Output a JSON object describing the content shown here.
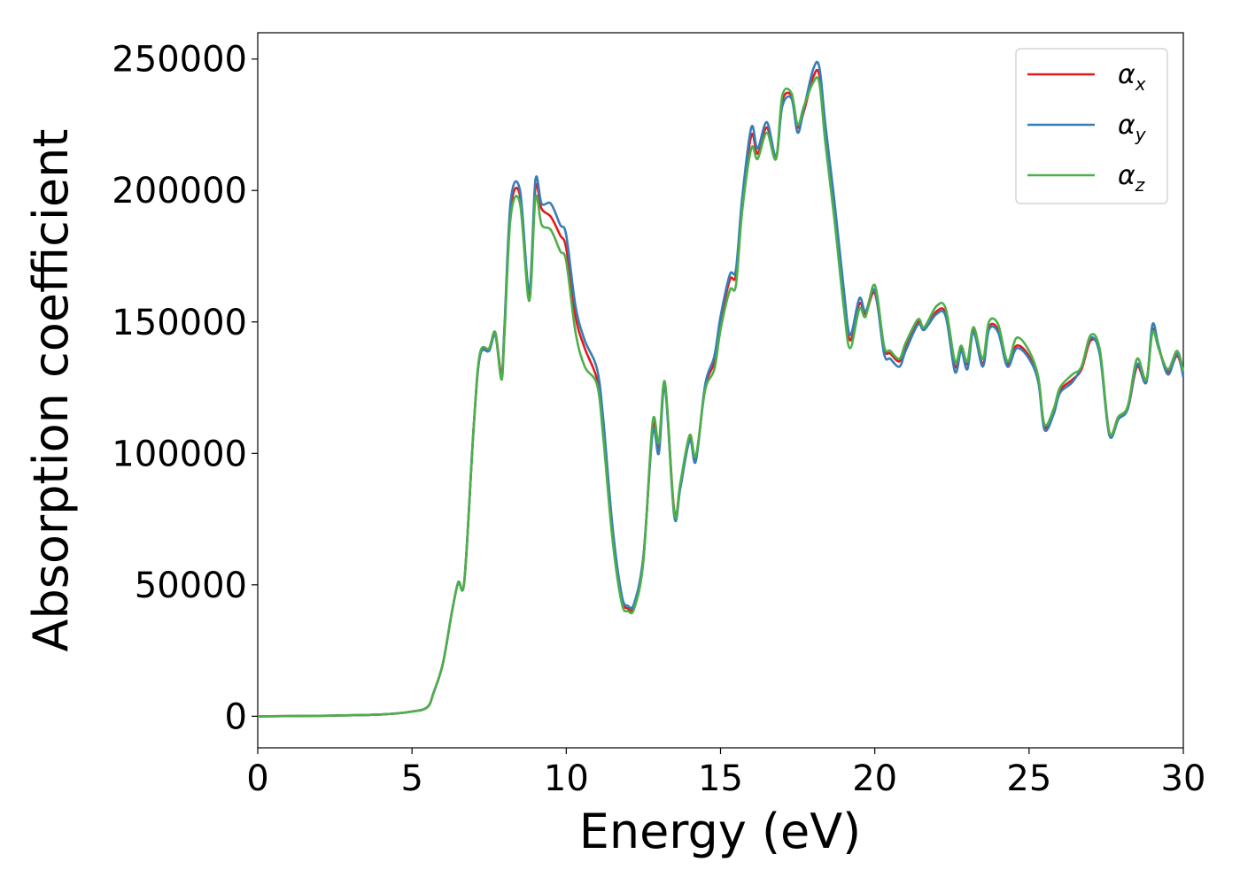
{
  "chart_data": {
    "type": "line",
    "title": "",
    "xlabel": "Energy (eV)",
    "ylabel": "Absorption coefficient",
    "xlim": [
      0,
      30
    ],
    "ylim": [
      -12000,
      260000
    ],
    "xticks": [
      0,
      5,
      10,
      15,
      20,
      25,
      30
    ],
    "xtick_labels": [
      "0",
      "5",
      "10",
      "15",
      "20",
      "25",
      "30"
    ],
    "yticks": [
      0,
      50000,
      100000,
      150000,
      200000,
      250000
    ],
    "ytick_labels": [
      "0",
      "50000",
      "100000",
      "150000",
      "200000",
      "250000"
    ],
    "grid": false,
    "legend_position": "top-right",
    "x": [
      0,
      2,
      4,
      5,
      5.5,
      5.7,
      6.0,
      6.3,
      6.5,
      6.7,
      7.0,
      7.2,
      7.5,
      7.7,
      7.9,
      8.0,
      8.2,
      8.5,
      8.8,
      9.0,
      9.2,
      9.5,
      9.8,
      10.0,
      10.3,
      10.6,
      11.0,
      11.2,
      11.5,
      11.8,
      12.0,
      12.2,
      12.5,
      12.8,
      13.0,
      13.2,
      13.5,
      13.7,
      14.0,
      14.2,
      14.5,
      14.8,
      15.0,
      15.3,
      15.5,
      15.7,
      16.0,
      16.2,
      16.5,
      16.8,
      17.0,
      17.3,
      17.5,
      17.7,
      18.0,
      18.2,
      18.4,
      18.7,
      19.0,
      19.2,
      19.5,
      19.7,
      20.0,
      20.3,
      20.5,
      20.8,
      21.0,
      21.4,
      21.6,
      22.0,
      22.3,
      22.6,
      22.8,
      23.0,
      23.2,
      23.5,
      23.7,
      24.0,
      24.3,
      24.6,
      25.0,
      25.3,
      25.5,
      25.8,
      26.0,
      26.4,
      26.7,
      27.0,
      27.3,
      27.6,
      27.9,
      28.2,
      28.5,
      28.8,
      29.0,
      29.2,
      29.5,
      29.8,
      30.0
    ],
    "series": [
      {
        "name": "αx",
        "label_base": "α",
        "label_sub": "x",
        "color": "#e31a1c",
        "values": [
          0,
          200,
          700,
          1800,
          3500,
          9000,
          20000,
          40000,
          51000,
          52000,
          110000,
          137000,
          140000,
          146000,
          130000,
          148000,
          193000,
          198000,
          160000,
          201000,
          193000,
          190000,
          183000,
          178000,
          152000,
          140000,
          128000,
          110000,
          70000,
          45000,
          41000,
          42000,
          60000,
          110000,
          102000,
          126000,
          78000,
          88000,
          106000,
          98000,
          125000,
          135000,
          150000,
          166000,
          168000,
          195000,
          221000,
          214000,
          224000,
          212000,
          234000,
          236000,
          224000,
          230000,
          243000,
          244000,
          222000,
          192000,
          160000,
          143000,
          157000,
          153000,
          161000,
          140000,
          138000,
          135000,
          140000,
          150000,
          147000,
          154000,
          153000,
          133000,
          140000,
          134000,
          147000,
          134000,
          148000,
          147000,
          134000,
          141000,
          137000,
          128000,
          110000,
          116000,
          124000,
          128000,
          132000,
          143000,
          138000,
          108000,
          114000,
          117000,
          133000,
          127000,
          147000,
          140000,
          131000,
          137000,
          130000
        ]
      },
      {
        "name": "αy",
        "label_base": "α",
        "label_sub": "y",
        "color": "#377eb8",
        "values": [
          0,
          200,
          700,
          1800,
          3500,
          9000,
          20000,
          40000,
          51000,
          52000,
          110000,
          137000,
          139000,
          145000,
          129000,
          149000,
          196000,
          200000,
          162000,
          204000,
          195000,
          195000,
          187000,
          183000,
          156000,
          143000,
          132000,
          113000,
          72000,
          46000,
          42000,
          43000,
          61000,
          108000,
          100000,
          125000,
          76000,
          87000,
          105000,
          97000,
          126000,
          137000,
          152000,
          168000,
          170000,
          197000,
          224000,
          216000,
          226000,
          213000,
          232000,
          235000,
          222000,
          231000,
          246000,
          247000,
          225000,
          195000,
          162000,
          145000,
          159000,
          154000,
          162000,
          138000,
          136000,
          133000,
          139000,
          149000,
          147000,
          153000,
          152000,
          131000,
          139000,
          132000,
          146000,
          133000,
          147000,
          146000,
          133000,
          140000,
          136000,
          127000,
          109000,
          115000,
          123000,
          127000,
          133000,
          144000,
          137000,
          107000,
          113000,
          117000,
          134000,
          127000,
          149000,
          141000,
          130000,
          138000,
          129000
        ]
      },
      {
        "name": "αz",
        "label_base": "α",
        "label_sub": "z",
        "color": "#4daf4a",
        "values": [
          0,
          200,
          700,
          1800,
          3500,
          9000,
          20000,
          40000,
          51000,
          52000,
          110000,
          138000,
          140000,
          146000,
          128000,
          146000,
          190000,
          195000,
          158000,
          197000,
          187000,
          185000,
          177000,
          173000,
          146000,
          133000,
          126000,
          106000,
          67000,
          43000,
          40000,
          41000,
          59000,
          112000,
          104000,
          127000,
          77000,
          89000,
          107000,
          99000,
          124000,
          132000,
          147000,
          162000,
          164000,
          192000,
          216000,
          212000,
          222000,
          212000,
          236000,
          237000,
          225000,
          232000,
          241000,
          241000,
          218000,
          188000,
          155000,
          140000,
          155000,
          152000,
          164000,
          141000,
          139000,
          136000,
          142000,
          151000,
          148000,
          156000,
          155000,
          135000,
          141000,
          135000,
          148000,
          136000,
          150000,
          149000,
          135000,
          144000,
          139000,
          129000,
          111000,
          117000,
          125000,
          130000,
          133000,
          145000,
          139000,
          108000,
          114000,
          118000,
          136000,
          128000,
          146000,
          140000,
          132000,
          139000,
          131000
        ]
      }
    ]
  }
}
